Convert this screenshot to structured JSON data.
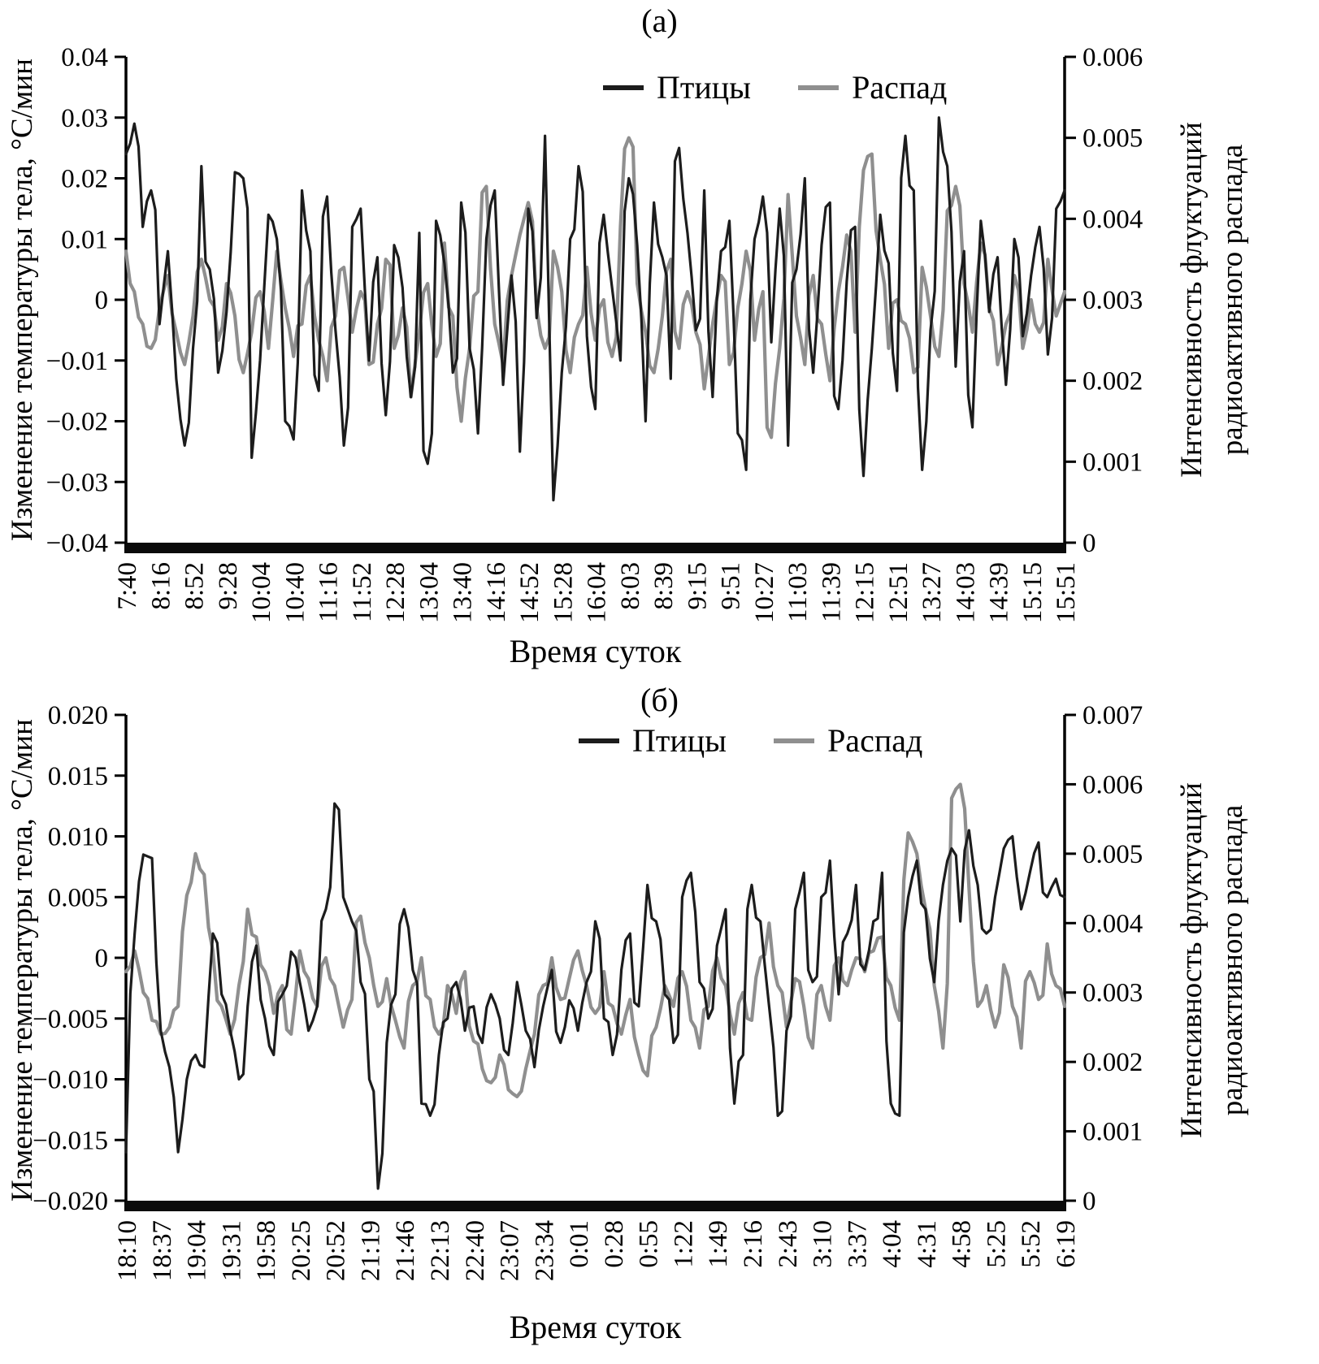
{
  "chart_data": [
    {
      "id": "a",
      "type": "line",
      "title": "(а)",
      "xlabel": "Время суток",
      "ylabel_left": "Изменение температуры тела, °С/мин",
      "ylabel_right_line1": "Интенсивность флуктуаций",
      "ylabel_right_line2": "радиоактивного распада",
      "grid": false,
      "legend_position": "top-inside",
      "left_axis": {
        "min": -0.04,
        "max": 0.04,
        "ticks": [
          "0.04",
          "0.03",
          "0.02",
          "0.01",
          "0",
          "−0.01",
          "−0.02",
          "−0.03",
          "−0.04"
        ]
      },
      "right_axis": {
        "min": 0,
        "max": 0.006,
        "ticks": [
          "0.006",
          "0.005",
          "0.004",
          "0.003",
          "0.002",
          "0.001",
          "0"
        ]
      },
      "x_ticks": [
        "7:40",
        "8:16",
        "8:52",
        "9:28",
        "10:04",
        "10:40",
        "11:16",
        "11:52",
        "12:28",
        "13:04",
        "13:40",
        "14:16",
        "14:52",
        "15:28",
        "16:04",
        "8:03",
        "8:39",
        "9:15",
        "9:51",
        "10:27",
        "11:03",
        "11:39",
        "12:15",
        "12:51",
        "13:27",
        "14:03",
        "14:39",
        "15:15",
        "15:51"
      ],
      "legend": [
        {
          "label": "Птицы",
          "color": "#1c1c1c"
        },
        {
          "label": "Распад",
          "color": "#8f8f8f"
        }
      ],
      "series": [
        {
          "name": "Птицы",
          "axis": "left",
          "color": "#1c1c1c",
          "values": [
            0.024,
            0.029,
            0.012,
            0.018,
            -0.004,
            0.008,
            -0.013,
            -0.024,
            -0.008,
            0.022,
            0.005,
            -0.012,
            -0.002,
            0.021,
            0.02,
            -0.026,
            -0.01,
            0.014,
            0.01,
            -0.02,
            -0.023,
            0.018,
            0.008,
            -0.015,
            0.017,
            -0.005,
            -0.024,
            0.012,
            0.015,
            -0.01,
            0.007,
            -0.019,
            0.009,
            0.002,
            -0.016,
            0.011,
            -0.027,
            0.013,
            0.006,
            -0.012,
            0.016,
            -0.008,
            -0.022,
            0.01,
            0.018,
            -0.014,
            0.004,
            -0.025,
            0.015,
            -0.003,
            0.027,
            -0.033,
            -0.012,
            0.01,
            0.022,
            -0.006,
            -0.018,
            0.014,
            0.002,
            -0.01,
            0.02,
            0.009,
            -0.02,
            0.016,
            0.007,
            -0.013,
            0.025,
            0.011,
            -0.005,
            0.018,
            -0.016,
            0.008,
            0.013,
            -0.022,
            -0.028,
            0.01,
            0.017,
            -0.007,
            0.015,
            -0.024,
            0.005,
            0.02,
            -0.012,
            0.009,
            0.016,
            -0.018,
            0.003,
            0.012,
            -0.029,
            -0.008,
            0.014,
            0.006,
            -0.015,
            0.027,
            0.018,
            -0.028,
            -0.005,
            0.03,
            0.022,
            -0.011,
            0.008,
            -0.021,
            0.013,
            -0.002,
            0.007,
            -0.014,
            0.01,
            -0.006,
            0.004,
            0.012,
            -0.009,
            0.015,
            0.018
          ]
        },
        {
          "name": "Распад",
          "axis": "right",
          "color": "#8f8f8f",
          "values": [
            0.0036,
            0.0031,
            0.0027,
            0.0024,
            0.0029,
            0.0033,
            0.0026,
            0.0022,
            0.0028,
            0.0035,
            0.003,
            0.0025,
            0.0032,
            0.0028,
            0.0021,
            0.0026,
            0.0031,
            0.0024,
            0.0036,
            0.0029,
            0.0023,
            0.0027,
            0.0033,
            0.0025,
            0.002,
            0.0028,
            0.0034,
            0.0026,
            0.0031,
            0.0022,
            0.0027,
            0.0035,
            0.0024,
            0.0029,
            0.0018,
            0.0026,
            0.0032,
            0.0023,
            0.0037,
            0.0028,
            0.0015,
            0.0024,
            0.0031,
            0.0044,
            0.0027,
            0.0022,
            0.0033,
            0.0038,
            0.0042,
            0.0029,
            0.0024,
            0.0036,
            0.0031,
            0.0021,
            0.0027,
            0.0034,
            0.0025,
            0.003,
            0.0023,
            0.0039,
            0.005,
            0.0032,
            0.0026,
            0.0021,
            0.0028,
            0.0035,
            0.0024,
            0.0031,
            0.0026,
            0.0019,
            0.0027,
            0.0033,
            0.0022,
            0.0029,
            0.0036,
            0.0025,
            0.0031,
            0.0013,
            0.0024,
            0.0043,
            0.0028,
            0.0022,
            0.0033,
            0.0027,
            0.002,
            0.0031,
            0.0038,
            0.0026,
            0.0046,
            0.0048,
            0.0035,
            0.0024,
            0.003,
            0.0027,
            0.0021,
            0.0034,
            0.0028,
            0.0023,
            0.0041,
            0.0044,
            0.0032,
            0.0026,
            0.0037,
            0.0029,
            0.0022,
            0.0027,
            0.0033,
            0.0024,
            0.003,
            0.0026,
            0.0035,
            0.0028,
            0.0031
          ]
        }
      ]
    },
    {
      "id": "b",
      "type": "line",
      "title": "(б)",
      "xlabel": "Время суток",
      "ylabel_left": "Изменение температуры тела, °С/мин",
      "ylabel_right_line1": "Интенсивность флуктуаций",
      "ylabel_right_line2": "радиоактивного распада",
      "grid": false,
      "legend_position": "top-inside",
      "left_axis": {
        "min": -0.02,
        "max": 0.02,
        "ticks": [
          "0.020",
          "0.015",
          "0.010",
          "0.005",
          "0",
          "−0.005",
          "−0.010",
          "−0.015",
          "−0.020"
        ]
      },
      "right_axis": {
        "min": 0,
        "max": 0.007,
        "ticks": [
          "0.007",
          "0.006",
          "0.005",
          "0.004",
          "0.003",
          "0.002",
          "0.001",
          "0"
        ]
      },
      "x_ticks": [
        "18:10",
        "18:37",
        "19:04",
        "19:31",
        "19:58",
        "20:25",
        "20:52",
        "21:19",
        "21:46",
        "22:13",
        "22:40",
        "23:07",
        "23:34",
        "0:01",
        "0:28",
        "0:55",
        "1:22",
        "1:49",
        "2:16",
        "2:43",
        "3:10",
        "3:37",
        "4:04",
        "4:31",
        "4:58",
        "5:25",
        "5:52",
        "6:19"
      ],
      "legend": [
        {
          "label": "Птицы",
          "color": "#1c1c1c"
        },
        {
          "label": "Распад",
          "color": "#8f8f8f"
        }
      ],
      "series": [
        {
          "name": "Птицы",
          "axis": "left",
          "color": "#1c1c1c",
          "values": [
            -0.016,
            0.002,
            0.0085,
            0.0082,
            -0.006,
            -0.009,
            -0.016,
            -0.01,
            -0.008,
            -0.009,
            0.002,
            -0.003,
            -0.006,
            -0.01,
            -0.004,
            0.001,
            -0.005,
            -0.008,
            -0.003,
            0.0005,
            -0.002,
            -0.006,
            -0.004,
            0.004,
            0.0127,
            0.005,
            0.003,
            -0.002,
            -0.01,
            -0.019,
            -0.007,
            -0.003,
            0.004,
            -0.001,
            -0.012,
            -0.013,
            -0.008,
            -0.005,
            -0.002,
            -0.006,
            -0.004,
            -0.007,
            -0.003,
            -0.005,
            -0.008,
            -0.002,
            -0.006,
            -0.009,
            -0.004,
            -0.001,
            -0.007,
            -0.0035,
            -0.006,
            -0.002,
            0.003,
            -0.005,
            -0.008,
            -0.001,
            0.002,
            -0.004,
            0.006,
            0.003,
            -0.003,
            -0.007,
            0.005,
            0.007,
            -0.002,
            -0.005,
            0.001,
            0.004,
            -0.012,
            -0.008,
            0.006,
            0.003,
            -0.004,
            -0.013,
            -0.006,
            0.004,
            0.007,
            -0.002,
            0.005,
            0.008,
            -0.003,
            0.002,
            0.006,
            -0.001,
            0.003,
            0.007,
            -0.012,
            -0.013,
            0.005,
            0.008,
            0.004,
            -0.002,
            0.006,
            0.009,
            0.003,
            0.0105,
            0.006,
            0.002,
            0.005,
            0.009,
            0.01,
            0.004,
            0.007,
            0.0095,
            0.005,
            0.0065,
            0.005
          ]
        },
        {
          "name": "Распад",
          "axis": "right",
          "color": "#8f8f8f",
          "values": [
            0.0033,
            0.0036,
            0.003,
            0.0026,
            0.0024,
            0.0025,
            0.0028,
            0.0044,
            0.005,
            0.0047,
            0.0036,
            0.0028,
            0.0024,
            0.0031,
            0.0042,
            0.0038,
            0.0033,
            0.0027,
            0.0031,
            0.0024,
            0.0036,
            0.0032,
            0.0028,
            0.0035,
            0.0031,
            0.0025,
            0.0029,
            0.0041,
            0.0035,
            0.0028,
            0.0032,
            0.0026,
            0.0022,
            0.0031,
            0.0035,
            0.0029,
            0.0024,
            0.0031,
            0.0027,
            0.0033,
            0.0023,
            0.0019,
            0.0017,
            0.0021,
            0.0016,
            0.0015,
            0.0019,
            0.0024,
            0.0031,
            0.0035,
            0.0029,
            0.0032,
            0.0036,
            0.0031,
            0.0027,
            0.0033,
            0.0028,
            0.0024,
            0.0029,
            0.0021,
            0.0018,
            0.0025,
            0.0031,
            0.0028,
            0.0033,
            0.0026,
            0.0022,
            0.0028,
            0.0035,
            0.0031,
            0.0024,
            0.003,
            0.0026,
            0.0035,
            0.004,
            0.0031,
            0.0025,
            0.0032,
            0.0028,
            0.0022,
            0.0031,
            0.0026,
            0.0035,
            0.0031,
            0.0035,
            0.0033,
            0.0036,
            0.0038,
            0.0031,
            0.0026,
            0.0053,
            0.005,
            0.0042,
            0.0031,
            0.0022,
            0.0058,
            0.006,
            0.0045,
            0.0028,
            0.0031,
            0.0025,
            0.0034,
            0.0028,
            0.0022,
            0.0033,
            0.0029,
            0.0037,
            0.0031,
            0.0028
          ]
        }
      ]
    }
  ]
}
